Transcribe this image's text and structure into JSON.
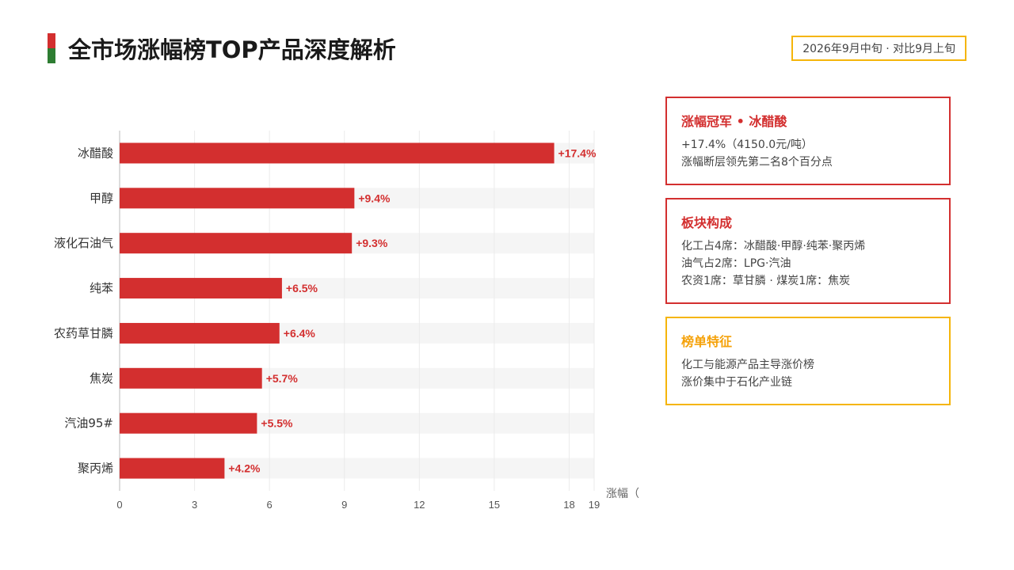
{
  "header": {
    "title": "全市场涨幅榜TOP产品深度解析",
    "date_badge": "2026年9月中旬 · 对比9月上旬"
  },
  "colors": {
    "bar": "#d32f2f",
    "label": "#d32f2f",
    "track": "#f5f5f5",
    "accent_red": "#d32f2f",
    "accent_green": "#2e7d32",
    "gold": "#f5b50a"
  },
  "chart_data": {
    "type": "bar",
    "orientation": "horizontal",
    "categories": [
      "冰醋酸",
      "甲醇",
      "液化石油气",
      "纯苯",
      "农药草甘膦",
      "焦炭",
      "汽油95#",
      "聚丙烯"
    ],
    "values": [
      17.4,
      9.4,
      9.3,
      6.5,
      6.4,
      5.7,
      5.5,
      4.2
    ],
    "value_labels": [
      "+17.4%",
      "+9.4%",
      "+9.3%",
      "+6.5%",
      "+6.4%",
      "+5.7%",
      "+5.5%",
      "+4.2%"
    ],
    "xlim": [
      0,
      19
    ],
    "xticks": [
      0,
      3,
      6,
      9,
      12,
      15,
      18,
      19
    ],
    "xlabel": "涨幅（",
    "grid": "vertical"
  },
  "cards": [
    {
      "title": "涨幅冠军 • 冰醋酸",
      "lines": [
        "+17.4%（4150.0元/吨）",
        "涨幅断层领先第二名8个百分点"
      ]
    },
    {
      "title": "板块构成",
      "lines": [
        "化工占4席：冰醋酸·甲醇·纯苯·聚丙烯",
        "油气占2席：LPG·汽油",
        "农资1席：草甘膦 · 煤炭1席：焦炭"
      ]
    },
    {
      "title": "榜单特征",
      "lines": [
        "化工与能源产品主导涨价榜",
        "涨价集中于石化产业链"
      ]
    }
  ]
}
